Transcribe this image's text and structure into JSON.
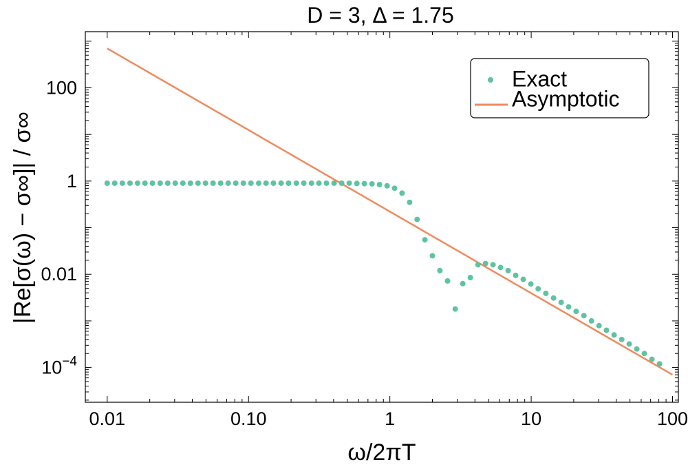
{
  "chart_data": {
    "type": "scatter",
    "title": "D = 3, Δ = 1.75",
    "xlabel": "ω/2πT",
    "ylabel": "|Re[σ(ω) − σ∞]| / σ∞",
    "xscale": "log",
    "yscale": "log",
    "xlim": [
      0.007,
      110
    ],
    "ylim": [
      1.8e-05,
      1600
    ],
    "legend_position": "top-right",
    "xticks": [
      {
        "value": 0.01,
        "label": "0.01"
      },
      {
        "value": 0.1,
        "label": "0.10"
      },
      {
        "value": 1,
        "label": "1"
      },
      {
        "value": 10,
        "label": "10"
      },
      {
        "value": 100,
        "label": "100"
      }
    ],
    "yticks": [
      {
        "value": 100,
        "label": "100"
      },
      {
        "value": 1,
        "label": "1"
      },
      {
        "value": 0.01,
        "label": "0.01"
      },
      {
        "value": 0.0001,
        "label": "10−4",
        "base": "10",
        "exponent": "−4"
      }
    ],
    "series": [
      {
        "name": "Exact",
        "kind": "points",
        "color": "#5fc2a0",
        "x": [
          0.01,
          0.0113,
          0.0128,
          0.0145,
          0.0164,
          0.0185,
          0.0209,
          0.0237,
          0.0268,
          0.0303,
          0.0343,
          0.0388,
          0.0439,
          0.0496,
          0.0561,
          0.0635,
          0.0718,
          0.0812,
          0.0919,
          0.104,
          0.118,
          0.133,
          0.15,
          0.17,
          0.192,
          0.218,
          0.246,
          0.279,
          0.315,
          0.356,
          0.403,
          0.456,
          0.516,
          0.584,
          0.66,
          0.747,
          0.845,
          0.956,
          1.08,
          1.22,
          1.38,
          1.56,
          1.77,
          2.0,
          2.26,
          2.56,
          2.9,
          3.28,
          3.71,
          4.2,
          4.75,
          5.37,
          6.07,
          6.87,
          7.77,
          8.79,
          9.94,
          11.2,
          12.7,
          14.4,
          16.3,
          18.4,
          20.8,
          23.6,
          26.7,
          30.2,
          34.1,
          38.6,
          43.7,
          49.4,
          55.9,
          63.2,
          71.5,
          80.9
        ],
        "y": [
          0.9,
          0.9,
          0.9,
          0.9,
          0.9,
          0.9,
          0.9,
          0.9,
          0.9,
          0.9,
          0.9,
          0.9,
          0.9,
          0.9,
          0.9,
          0.9,
          0.9,
          0.9,
          0.9,
          0.9,
          0.9,
          0.9,
          0.9,
          0.9,
          0.9,
          0.9,
          0.9,
          0.9,
          0.9,
          0.9,
          0.9,
          0.9,
          0.9,
          0.89,
          0.88,
          0.87,
          0.84,
          0.79,
          0.7,
          0.55,
          0.35,
          0.15,
          0.055,
          0.025,
          0.012,
          0.0072,
          0.0018,
          0.0063,
          0.0085,
          0.016,
          0.017,
          0.016,
          0.014,
          0.012,
          0.0095,
          0.0078,
          0.0062,
          0.0049,
          0.0039,
          0.0031,
          0.0025,
          0.002,
          0.0016,
          0.0013,
          0.001,
          0.00079,
          0.00063,
          0.0005,
          0.0004,
          0.00032,
          0.00025,
          0.0002,
          0.00015,
          0.00012
        ]
      },
      {
        "name": "Asymptotic",
        "kind": "line",
        "color": "#f08a5d",
        "x": [
          0.01,
          100
        ],
        "y": [
          700,
          7e-05
        ]
      }
    ]
  }
}
